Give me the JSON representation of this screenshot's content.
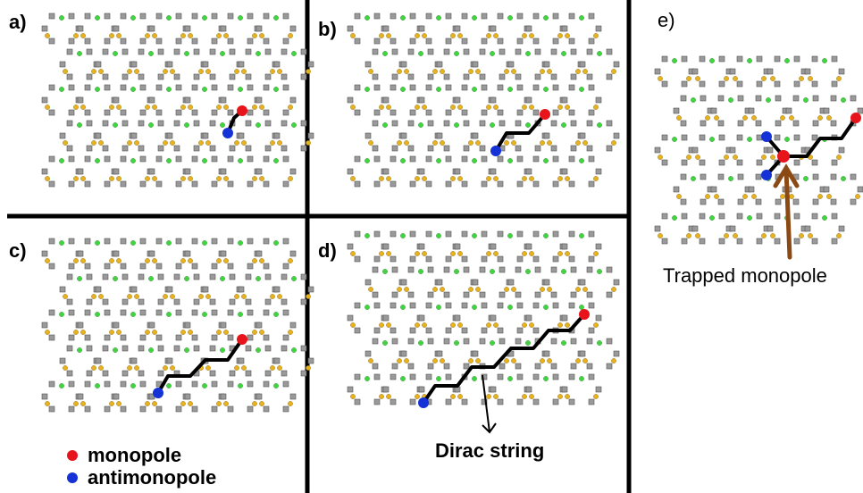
{
  "panels": {
    "a": {
      "label": "a)"
    },
    "b": {
      "label": "b)"
    },
    "c": {
      "label": "c)"
    },
    "d": {
      "label": "d)"
    },
    "e": {
      "label": "e)",
      "caption": "Trapped monopole"
    }
  },
  "legend": {
    "monopole": "monopole",
    "antimonopole": "antimonopole"
  },
  "annotations": {
    "dirac_string": "Dirac string"
  },
  "colors": {
    "monopole": "#e8141b",
    "antimonopole": "#1432d6",
    "spin_site": "#9a9a9a",
    "green_vertex": "#3fd63f",
    "orange_vertex": "#e6b21e",
    "string": "#000000",
    "trap_arrow": "#8b4a14",
    "divider": "#000000"
  }
}
